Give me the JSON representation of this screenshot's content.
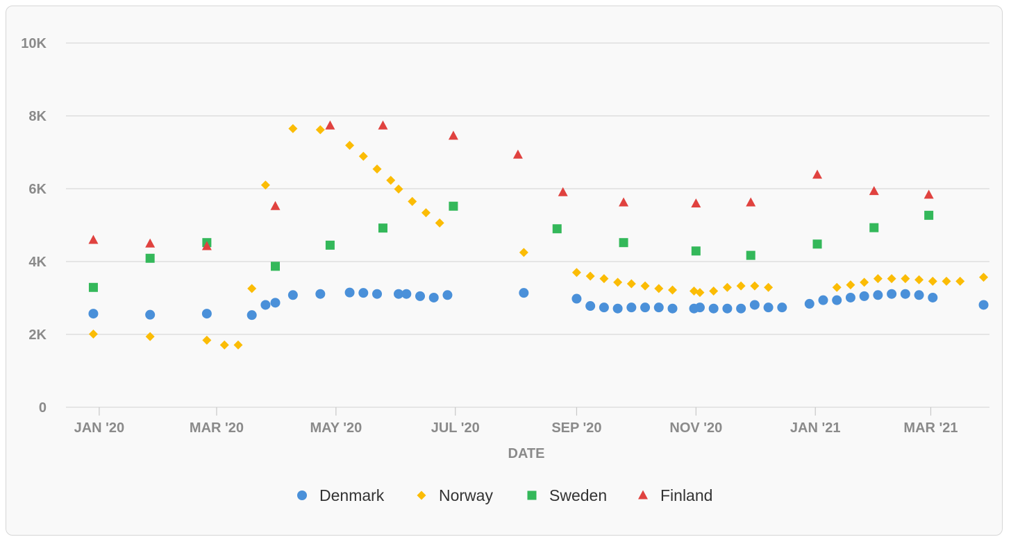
{
  "chart_data": {
    "type": "scatter",
    "xlabel": "DATE",
    "ylabel": "",
    "ylim": [
      0,
      10000
    ],
    "xlim": [
      "2019-12-15",
      "2021-03-31"
    ],
    "y_ticks": [
      0,
      2000,
      4000,
      6000,
      8000,
      10000
    ],
    "y_tick_labels": [
      "0",
      "2K",
      "4K",
      "6K",
      "8K",
      "10K"
    ],
    "x_ticks": [
      "2020-01-01",
      "2020-03-01",
      "2020-05-01",
      "2020-07-01",
      "2020-09-01",
      "2020-11-01",
      "2021-01-01",
      "2021-03-01"
    ],
    "x_tick_labels": [
      "JAN '20",
      "MAR '20",
      "MAY '20",
      "JUL '20",
      "SEP '20",
      "NOV '20",
      "JAN '21",
      "MAR '21"
    ],
    "grid": true,
    "legend_position": "bottom",
    "series": [
      {
        "name": "Denmark",
        "marker": "circle",
        "color": "#4a90d9",
        "points": [
          [
            "2019-12-29",
            2570
          ],
          [
            "2020-01-27",
            2540
          ],
          [
            "2020-02-25",
            2570
          ],
          [
            "2020-03-19",
            2530
          ],
          [
            "2020-03-26",
            2810
          ],
          [
            "2020-03-31",
            2870
          ],
          [
            "2020-04-09",
            3080
          ],
          [
            "2020-04-23",
            3110
          ],
          [
            "2020-05-08",
            3150
          ],
          [
            "2020-05-15",
            3140
          ],
          [
            "2020-05-22",
            3110
          ],
          [
            "2020-06-02",
            3110
          ],
          [
            "2020-06-06",
            3110
          ],
          [
            "2020-06-13",
            3050
          ],
          [
            "2020-06-20",
            3010
          ],
          [
            "2020-06-27",
            3080
          ],
          [
            "2020-08-05",
            3140
          ],
          [
            "2020-09-01",
            2980
          ],
          [
            "2020-09-08",
            2780
          ],
          [
            "2020-09-15",
            2740
          ],
          [
            "2020-09-22",
            2710
          ],
          [
            "2020-09-29",
            2740
          ],
          [
            "2020-10-06",
            2740
          ],
          [
            "2020-10-13",
            2740
          ],
          [
            "2020-10-20",
            2710
          ],
          [
            "2020-10-31",
            2710
          ],
          [
            "2020-11-03",
            2740
          ],
          [
            "2020-11-10",
            2710
          ],
          [
            "2020-11-17",
            2710
          ],
          [
            "2020-11-24",
            2710
          ],
          [
            "2020-12-01",
            2810
          ],
          [
            "2020-12-08",
            2740
          ],
          [
            "2020-12-15",
            2740
          ],
          [
            "2020-12-29",
            2840
          ],
          [
            "2021-01-05",
            2940
          ],
          [
            "2021-01-12",
            2940
          ],
          [
            "2021-01-19",
            3010
          ],
          [
            "2021-01-26",
            3050
          ],
          [
            "2021-02-02",
            3080
          ],
          [
            "2021-02-09",
            3110
          ],
          [
            "2021-02-16",
            3110
          ],
          [
            "2021-02-23",
            3080
          ],
          [
            "2021-03-02",
            3010
          ],
          [
            "2021-03-28",
            2810
          ]
        ]
      },
      {
        "name": "Norway",
        "marker": "diamond",
        "color": "#fbbc05",
        "points": [
          [
            "2019-12-29",
            2010
          ],
          [
            "2020-01-27",
            1940
          ],
          [
            "2020-02-25",
            1840
          ],
          [
            "2020-03-05",
            1710
          ],
          [
            "2020-03-12",
            1710
          ],
          [
            "2020-03-19",
            3260
          ],
          [
            "2020-03-26",
            6100
          ],
          [
            "2020-04-09",
            7650
          ],
          [
            "2020-04-23",
            7620
          ],
          [
            "2020-05-08",
            7190
          ],
          [
            "2020-05-15",
            6890
          ],
          [
            "2020-05-22",
            6540
          ],
          [
            "2020-05-29",
            6230
          ],
          [
            "2020-06-02",
            5990
          ],
          [
            "2020-06-09",
            5650
          ],
          [
            "2020-06-16",
            5340
          ],
          [
            "2020-06-23",
            5060
          ],
          [
            "2020-08-05",
            4250
          ],
          [
            "2020-09-01",
            3700
          ],
          [
            "2020-09-08",
            3600
          ],
          [
            "2020-09-15",
            3530
          ],
          [
            "2020-09-22",
            3430
          ],
          [
            "2020-09-29",
            3390
          ],
          [
            "2020-10-06",
            3330
          ],
          [
            "2020-10-13",
            3260
          ],
          [
            "2020-10-20",
            3220
          ],
          [
            "2020-10-31",
            3190
          ],
          [
            "2020-11-03",
            3150
          ],
          [
            "2020-11-10",
            3190
          ],
          [
            "2020-11-17",
            3290
          ],
          [
            "2020-11-24",
            3330
          ],
          [
            "2020-12-01",
            3330
          ],
          [
            "2020-12-08",
            3290
          ],
          [
            "2021-01-12",
            3290
          ],
          [
            "2021-01-19",
            3360
          ],
          [
            "2021-01-26",
            3430
          ],
          [
            "2021-02-02",
            3530
          ],
          [
            "2021-02-09",
            3530
          ],
          [
            "2021-02-16",
            3530
          ],
          [
            "2021-02-23",
            3500
          ],
          [
            "2021-03-02",
            3460
          ],
          [
            "2021-03-09",
            3460
          ],
          [
            "2021-03-16",
            3460
          ],
          [
            "2021-03-28",
            3570
          ]
        ]
      },
      {
        "name": "Sweden",
        "marker": "square",
        "color": "#34b85a",
        "points": [
          [
            "2019-12-29",
            3290
          ],
          [
            "2020-01-27",
            4090
          ],
          [
            "2020-02-25",
            4520
          ],
          [
            "2020-03-31",
            3870
          ],
          [
            "2020-04-28",
            4450
          ],
          [
            "2020-05-25",
            4920
          ],
          [
            "2020-06-30",
            5520
          ],
          [
            "2020-08-22",
            4900
          ],
          [
            "2020-09-25",
            4520
          ],
          [
            "2020-11-01",
            4290
          ],
          [
            "2020-11-29",
            4170
          ],
          [
            "2021-01-02",
            4480
          ],
          [
            "2021-01-31",
            4930
          ],
          [
            "2021-02-28",
            5270
          ]
        ]
      },
      {
        "name": "Finland",
        "marker": "triangle",
        "color": "#e0423f",
        "points": [
          [
            "2019-12-29",
            4590
          ],
          [
            "2020-01-27",
            4490
          ],
          [
            "2020-02-25",
            4420
          ],
          [
            "2020-03-31",
            5520
          ],
          [
            "2020-04-28",
            7730
          ],
          [
            "2020-05-25",
            7730
          ],
          [
            "2020-06-30",
            7450
          ],
          [
            "2020-08-02",
            6930
          ],
          [
            "2020-08-25",
            5900
          ],
          [
            "2020-09-25",
            5620
          ],
          [
            "2020-11-01",
            5590
          ],
          [
            "2020-11-29",
            5620
          ],
          [
            "2021-01-02",
            6380
          ],
          [
            "2021-01-31",
            5930
          ],
          [
            "2021-02-28",
            5830
          ]
        ]
      }
    ]
  }
}
